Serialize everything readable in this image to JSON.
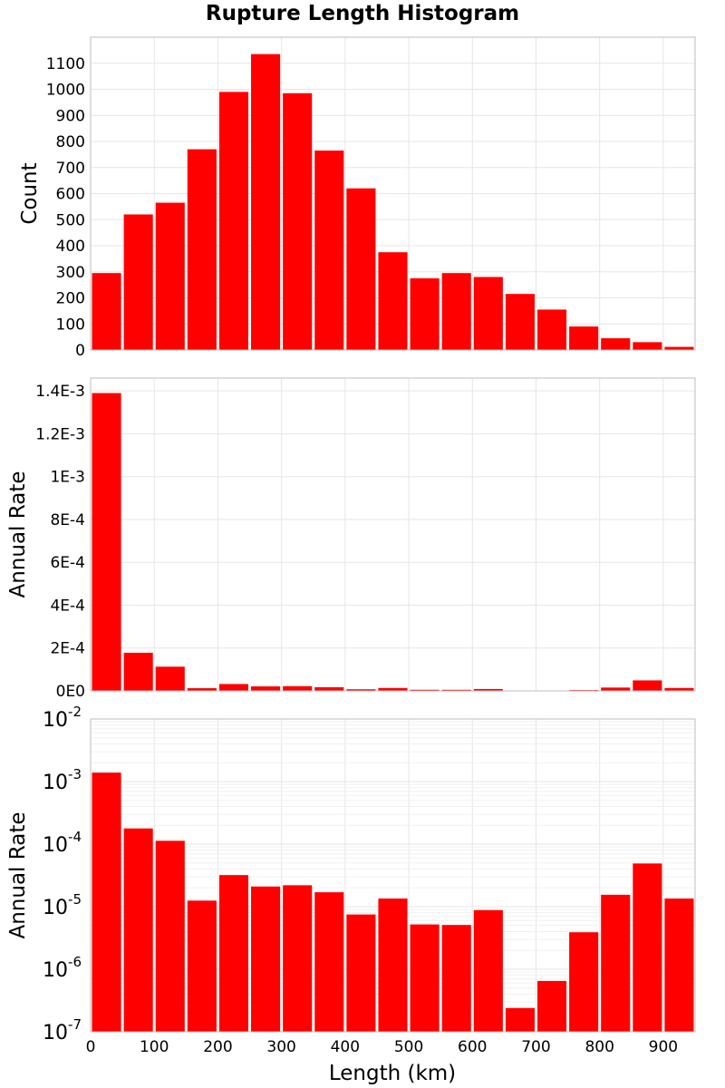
{
  "title": "Rupture Length Histogram",
  "colors": {
    "bar": "#ff0000",
    "background": "#ffffff"
  },
  "chart_data": [
    {
      "type": "bar",
      "xlabel": "Length (km)",
      "ylabel": "Count",
      "yscale": "linear",
      "grid": true,
      "x": [
        25,
        75,
        125,
        175,
        225,
        275,
        325,
        375,
        425,
        475,
        525,
        575,
        625,
        675,
        725,
        775,
        825,
        875,
        925
      ],
      "values": [
        295,
        520,
        565,
        770,
        990,
        1135,
        985,
        765,
        620,
        375,
        275,
        295,
        280,
        215,
        155,
        90,
        45,
        30,
        12
      ],
      "ylim": [
        0,
        1200
      ],
      "yticks": [
        0,
        100,
        200,
        300,
        400,
        500,
        600,
        700,
        800,
        900,
        1000,
        1100
      ],
      "ytick_labels": [
        "0",
        "100",
        "200",
        "300",
        "400",
        "500",
        "600",
        "700",
        "800",
        "900",
        "1000",
        "1100"
      ]
    },
    {
      "type": "bar",
      "xlabel": "Length (km)",
      "ylabel": "Annual Rate",
      "yscale": "linear",
      "grid": true,
      "x": [
        25,
        75,
        125,
        175,
        225,
        275,
        325,
        375,
        425,
        475,
        525,
        575,
        625,
        675,
        725,
        775,
        825,
        875,
        925
      ],
      "values": [
        0.00139,
        0.000178,
        0.000113,
        1.25e-05,
        3.2e-05,
        2.1e-05,
        2.2e-05,
        1.7e-05,
        7.5e-06,
        1.35e-05,
        5.2e-06,
        5.1e-06,
        8.8e-06,
        2.4e-07,
        6.5e-07,
        3.9e-06,
        1.55e-05,
        4.9e-05,
        1.35e-05
      ],
      "ylim": [
        0,
        0.00146
      ],
      "yticks": [
        0,
        0.0002,
        0.0004,
        0.0006,
        0.0008,
        0.001,
        0.0012,
        0.0014
      ],
      "ytick_labels": [
        "0E0",
        "2E-4",
        "4E-4",
        "6E-4",
        "8E-4",
        "1E-3",
        "1.2E-3",
        "1.4E-3"
      ]
    },
    {
      "type": "bar",
      "xlabel": "Length (km)",
      "ylabel": "Annual Rate",
      "yscale": "log",
      "grid": true,
      "x": [
        25,
        75,
        125,
        175,
        225,
        275,
        325,
        375,
        425,
        475,
        525,
        575,
        625,
        675,
        725,
        775,
        825,
        875,
        925
      ],
      "values": [
        0.00139,
        0.000178,
        0.000113,
        1.25e-05,
        3.2e-05,
        2.1e-05,
        2.2e-05,
        1.7e-05,
        7.5e-06,
        1.35e-05,
        5.2e-06,
        5.1e-06,
        8.8e-06,
        2.4e-07,
        6.5e-07,
        3.9e-06,
        1.55e-05,
        4.9e-05,
        1.35e-05
      ],
      "ylim": [
        1e-07,
        0.01
      ],
      "yticks": [
        1e-07,
        1e-06,
        1e-05,
        0.0001,
        0.001,
        0.01
      ],
      "ytick_bases": [
        "10",
        "10",
        "10",
        "10",
        "10",
        "10"
      ],
      "ytick_exponents": [
        "-7",
        "-6",
        "-5",
        "-4",
        "-3",
        "-2"
      ]
    }
  ],
  "xaxis": {
    "xlim": [
      0,
      950
    ],
    "xticks": [
      0,
      100,
      200,
      300,
      400,
      500,
      600,
      700,
      800,
      900
    ],
    "xtick_labels": [
      "0",
      "100",
      "200",
      "300",
      "400",
      "500",
      "600",
      "700",
      "800",
      "900"
    ]
  }
}
